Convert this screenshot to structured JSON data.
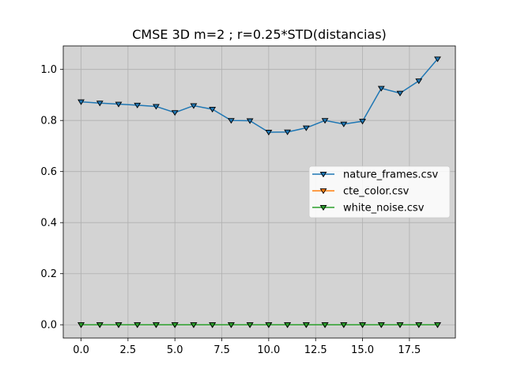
{
  "chart_data": {
    "type": "line",
    "title": "CMSE 3D m=2 ; r=0.25*STD(distancias)",
    "xlabel": "",
    "ylabel": "",
    "xlim": [
      -0.95,
      19.95
    ],
    "ylim": [
      -0.052,
      1.092
    ],
    "xticks": [
      0,
      2.5,
      5,
      7.5,
      10,
      12.5,
      15,
      17.5
    ],
    "xtick_labels": [
      "0.0",
      "2.5",
      "5.0",
      "7.5",
      "10.0",
      "12.5",
      "15.0",
      "17.5"
    ],
    "yticks": [
      0,
      0.2,
      0.4,
      0.6,
      0.8,
      1.0
    ],
    "ytick_labels": [
      "0.0",
      "0.2",
      "0.4",
      "0.6",
      "0.8",
      "1.0"
    ],
    "grid": true,
    "legend_position": "center-right",
    "x": [
      0,
      1,
      2,
      3,
      4,
      5,
      6,
      7,
      8,
      9,
      10,
      11,
      12,
      13,
      14,
      15,
      16,
      17,
      18,
      19
    ],
    "series": [
      {
        "name": "nature_frames.csv",
        "color": "#1f77b4",
        "marker": "triangle-down",
        "values": [
          0.873,
          0.868,
          0.864,
          0.86,
          0.855,
          0.831,
          0.858,
          0.844,
          0.8,
          0.799,
          0.754,
          0.755,
          0.771,
          0.8,
          0.786,
          0.797,
          0.926,
          0.907,
          0.955,
          1.041
        ]
      },
      {
        "name": "cte_color.csv",
        "color": "#ff7f0e",
        "marker": "triangle-down",
        "values": [
          0,
          0,
          0,
          0,
          0,
          0,
          0,
          0,
          0,
          0,
          0,
          0,
          0,
          0,
          0,
          0,
          0,
          0,
          0,
          0
        ]
      },
      {
        "name": "white_noise.csv",
        "color": "#2ca02c",
        "marker": "triangle-down",
        "values": [
          0,
          0,
          0,
          0,
          0,
          0,
          0,
          0,
          0,
          0,
          0,
          0,
          0,
          0,
          0,
          0,
          0,
          0,
          0,
          0
        ]
      }
    ],
    "plot_background": "#d3d3d3",
    "grid_color": "#b0b0b0"
  }
}
